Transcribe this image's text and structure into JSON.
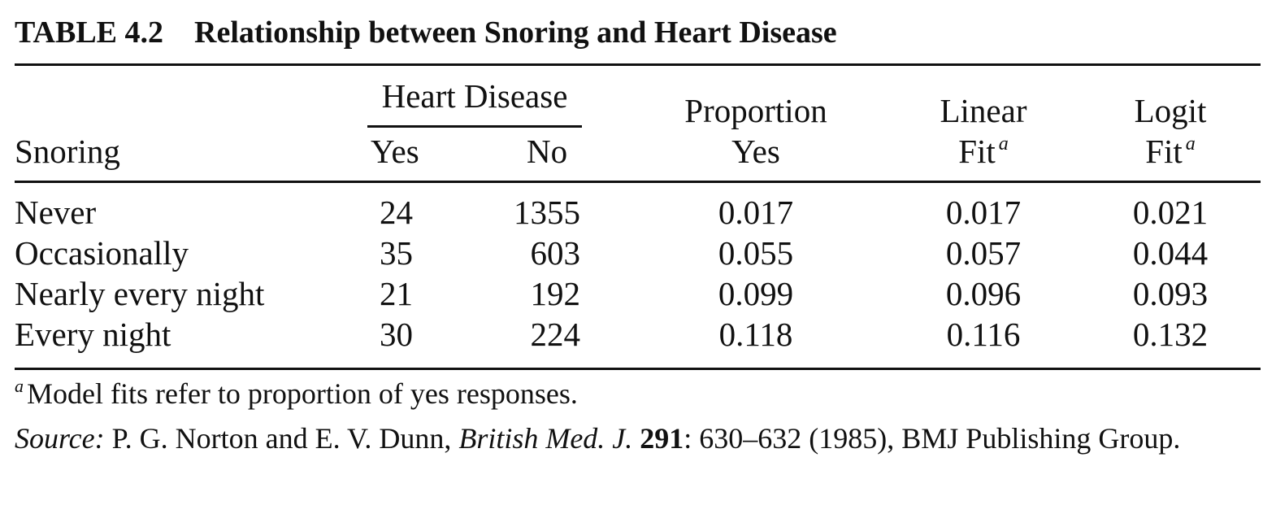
{
  "table": {
    "label": "TABLE 4.2",
    "title": "Relationship between Snoring and Heart Disease",
    "header": {
      "group_label": "Heart Disease",
      "snoring": "Snoring",
      "yes": "Yes",
      "no": "No",
      "proportion_line1": "Proportion",
      "proportion_line2": "Yes",
      "linear_line1": "Linear",
      "linear_line2": "Fit",
      "logit_line1": "Logit",
      "logit_line2": "Fit",
      "footnote_marker": "a"
    },
    "rows": [
      {
        "snoring": "Never",
        "yes": "24",
        "no": "1355",
        "proportion": "0.017",
        "linear": "0.017",
        "logit": "0.021"
      },
      {
        "snoring": "Occasionally",
        "yes": "35",
        "no": "603",
        "proportion": "0.055",
        "linear": "0.057",
        "logit": "0.044"
      },
      {
        "snoring": "Nearly every night",
        "yes": "21",
        "no": "192",
        "proportion": "0.099",
        "linear": "0.096",
        "logit": "0.093"
      },
      {
        "snoring": "Every night",
        "yes": "30",
        "no": "224",
        "proportion": "0.118",
        "linear": "0.116",
        "logit": "0.132"
      }
    ],
    "footnote": {
      "marker": "a",
      "text": "Model fits refer to proportion of yes responses."
    },
    "source": {
      "label": "Source:",
      "authors": "P. G. Norton and E. V. Dunn,",
      "journal": "British Med. J.",
      "volume": "291",
      "rest": ": 630–632 (1985), BMJ Publishing Group."
    }
  }
}
